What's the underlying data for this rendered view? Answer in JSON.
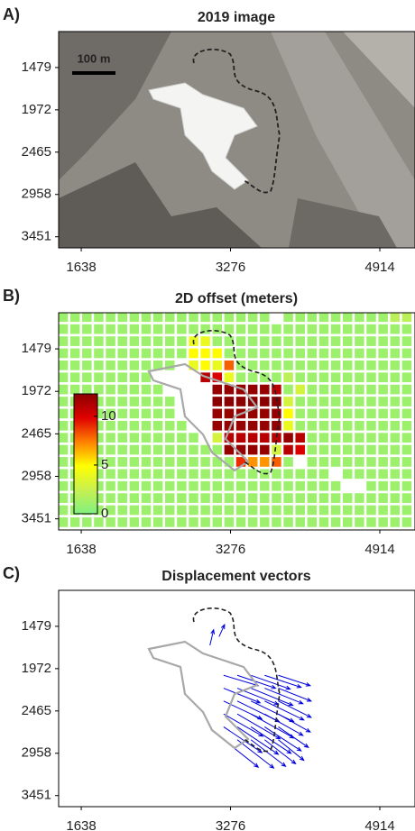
{
  "chart_data": [
    {
      "type": "image",
      "panel": "A)",
      "title": "2019 image",
      "annotation": "100 m",
      "xlim": [
        1390,
        5300
      ],
      "ylim": [
        3580,
        1060
      ],
      "xticks": [
        1638,
        3276,
        4914
      ],
      "yticks": [
        1479,
        1972,
        2465,
        2958,
        3451
      ]
    },
    {
      "type": "heatmap",
      "panel": "B)",
      "title": "2D offset (meters)",
      "xlim": [
        1390,
        5300
      ],
      "ylim": [
        3580,
        1060
      ],
      "xticks": [
        1638,
        3276,
        4914
      ],
      "yticks": [
        1479,
        1972,
        2465,
        2958,
        3451
      ],
      "x": [
        1440,
        1570,
        1700,
        1830,
        1960,
        2090,
        2220,
        2350,
        2480,
        2610,
        2740,
        2870,
        3000,
        3130,
        3260,
        3390,
        3520,
        3650,
        3780,
        3910,
        4040,
        4170,
        4300,
        4430,
        4560,
        4690,
        4820,
        4950,
        5080,
        5210
      ],
      "y": [
        1110,
        1250,
        1390,
        1530,
        1670,
        1810,
        1950,
        2090,
        2230,
        2370,
        2510,
        2650,
        2790,
        2930,
        3070,
        3210,
        3350,
        3490
      ],
      "z": [
        [
          1,
          1,
          1,
          1,
          1,
          1,
          1,
          1,
          1,
          1,
          1,
          1,
          1,
          1,
          1,
          1,
          1,
          1,
          null,
          1,
          1,
          1,
          1,
          1,
          1,
          1,
          1,
          1,
          2,
          2
        ],
        [
          1,
          1,
          1,
          1,
          1,
          1,
          1,
          1,
          1,
          1,
          1,
          1,
          1,
          1,
          1,
          1,
          1,
          1,
          1,
          1,
          1,
          1,
          1,
          1,
          1,
          1,
          1,
          1,
          1,
          1
        ],
        [
          1,
          1,
          1,
          1,
          1,
          1,
          1,
          1,
          1,
          1,
          1,
          4,
          4,
          1,
          1,
          1,
          1,
          1,
          1,
          1,
          1,
          1,
          1,
          1,
          1,
          1,
          1,
          1,
          1,
          1
        ],
        [
          1,
          1,
          1,
          1,
          1,
          1,
          1,
          1,
          1,
          1,
          1,
          5,
          5,
          5,
          1,
          1,
          1,
          1,
          1,
          1,
          1,
          1,
          1,
          1,
          1,
          1,
          1,
          1,
          1,
          1
        ],
        [
          1,
          1,
          1,
          1,
          1,
          1,
          1,
          1,
          1,
          1,
          null,
          4,
          5,
          4,
          8,
          1,
          1,
          1,
          1,
          1,
          1,
          1,
          1,
          1,
          1,
          1,
          1,
          1,
          1,
          1
        ],
        [
          1,
          1,
          1,
          1,
          1,
          1,
          1,
          1,
          null,
          null,
          null,
          null,
          11,
          10,
          4,
          1,
          1,
          1,
          1,
          2,
          1,
          1,
          1,
          1,
          1,
          1,
          1,
          1,
          1,
          1
        ],
        [
          1,
          1,
          1,
          1,
          1,
          1,
          1,
          1,
          1,
          null,
          null,
          null,
          null,
          12,
          12,
          12,
          12,
          12,
          11,
          1,
          3,
          1,
          1,
          1,
          1,
          1,
          1,
          1,
          1,
          1
        ],
        [
          1,
          1,
          1,
          1,
          1,
          1,
          1,
          1,
          1,
          1,
          null,
          null,
          null,
          13,
          13,
          13,
          13,
          13,
          13,
          3,
          1,
          1,
          1,
          1,
          1,
          1,
          1,
          1,
          1,
          1
        ],
        [
          1,
          1,
          1,
          1,
          1,
          1,
          1,
          1,
          1,
          1,
          null,
          null,
          null,
          12,
          12,
          12,
          12,
          12,
          12,
          5,
          1,
          1,
          1,
          1,
          1,
          1,
          1,
          1,
          1,
          1
        ],
        [
          1,
          1,
          1,
          1,
          1,
          1,
          1,
          1,
          1,
          1,
          1,
          null,
          null,
          12,
          12,
          12,
          12,
          12,
          12,
          4,
          1,
          1,
          1,
          1,
          1,
          1,
          1,
          1,
          1,
          1
        ],
        [
          1,
          1,
          1,
          1,
          1,
          1,
          1,
          1,
          1,
          1,
          1,
          1,
          null,
          3,
          11,
          11,
          11,
          11,
          11,
          12,
          11,
          1,
          1,
          1,
          1,
          1,
          1,
          1,
          1,
          1
        ],
        [
          1,
          1,
          1,
          1,
          1,
          1,
          1,
          1,
          1,
          1,
          1,
          1,
          1,
          1,
          12,
          12,
          12,
          12,
          3,
          11,
          10,
          1,
          1,
          1,
          1,
          1,
          1,
          1,
          1,
          1
        ],
        [
          1,
          1,
          1,
          1,
          1,
          1,
          1,
          1,
          1,
          1,
          1,
          1,
          1,
          1,
          1,
          9,
          7,
          7,
          8,
          1,
          null,
          1,
          1,
          1,
          1,
          1,
          1,
          1,
          1,
          1
        ],
        [
          1,
          1,
          1,
          1,
          1,
          1,
          1,
          1,
          1,
          1,
          1,
          1,
          1,
          1,
          1,
          1,
          1,
          1,
          1,
          1,
          1,
          1,
          1,
          null,
          1,
          1,
          1,
          1,
          1,
          1
        ],
        [
          1,
          1,
          1,
          1,
          1,
          1,
          1,
          1,
          1,
          1,
          1,
          1,
          1,
          1,
          1,
          1,
          1,
          1,
          1,
          1,
          1,
          1,
          1,
          1,
          null,
          null,
          1,
          1,
          1,
          1
        ],
        [
          1,
          1,
          1,
          1,
          1,
          1,
          1,
          1,
          1,
          1,
          1,
          1,
          1,
          1,
          1,
          1,
          1,
          1,
          1,
          1,
          1,
          1,
          1,
          1,
          1,
          1,
          1,
          1,
          1,
          1
        ],
        [
          1,
          1,
          1,
          1,
          1,
          1,
          1,
          1,
          1,
          1,
          1,
          1,
          1,
          1,
          1,
          1,
          1,
          1,
          1,
          1,
          1,
          1,
          1,
          1,
          1,
          1,
          1,
          1,
          1,
          1
        ],
        [
          1,
          1,
          1,
          1,
          1,
          1,
          1,
          1,
          1,
          1,
          1,
          1,
          1,
          1,
          1,
          1,
          1,
          1,
          1,
          1,
          1,
          1,
          1,
          1,
          1,
          1,
          1,
          1,
          1,
          1
        ]
      ],
      "colormap": [
        "#80f080",
        "#c8f050",
        "#ffff00",
        "#ff8000",
        "#e00000",
        "#8b0000"
      ],
      "clim": [
        0,
        12.3
      ],
      "cticks": [
        0,
        5,
        10
      ]
    },
    {
      "type": "quiver",
      "panel": "C)",
      "title": "Displacement vectors",
      "color": "#0000dd",
      "xlim": [
        1390,
        5300
      ],
      "ylim": [
        3580,
        1060
      ],
      "xticks": [
        1638,
        3276,
        4914
      ],
      "yticks": [
        1479,
        1972,
        2465,
        2958,
        3451
      ],
      "x": [
        3200,
        3350,
        3500,
        3650,
        3800,
        3200,
        3350,
        3500,
        3650,
        3800,
        3200,
        3350,
        3500,
        3650,
        3800,
        3200,
        3350,
        3500,
        3650,
        3800,
        3200,
        3350,
        3500,
        3650,
        3800,
        3200,
        3350,
        3500,
        3650,
        3800,
        3050,
        3150
      ],
      "y": [
        2050,
        2050,
        2050,
        2050,
        2050,
        2200,
        2200,
        2200,
        2200,
        2200,
        2350,
        2350,
        2350,
        2350,
        2350,
        2500,
        2500,
        2500,
        2500,
        2500,
        2650,
        2650,
        2650,
        2650,
        2650,
        2800,
        2800,
        2800,
        2800,
        2800,
        1700,
        1600
      ],
      "u": [
        380,
        420,
        430,
        400,
        350,
        400,
        450,
        460,
        420,
        360,
        420,
        460,
        470,
        430,
        360,
        430,
        470,
        470,
        420,
        350,
        420,
        450,
        440,
        400,
        330,
        380,
        400,
        380,
        340,
        280,
        40,
        60
      ],
      "v": [
        120,
        150,
        160,
        140,
        120,
        170,
        190,
        200,
        180,
        150,
        210,
        240,
        240,
        220,
        190,
        260,
        290,
        280,
        250,
        210,
        300,
        320,
        310,
        280,
        240,
        320,
        330,
        310,
        280,
        240,
        -180,
        -140
      ]
    }
  ]
}
